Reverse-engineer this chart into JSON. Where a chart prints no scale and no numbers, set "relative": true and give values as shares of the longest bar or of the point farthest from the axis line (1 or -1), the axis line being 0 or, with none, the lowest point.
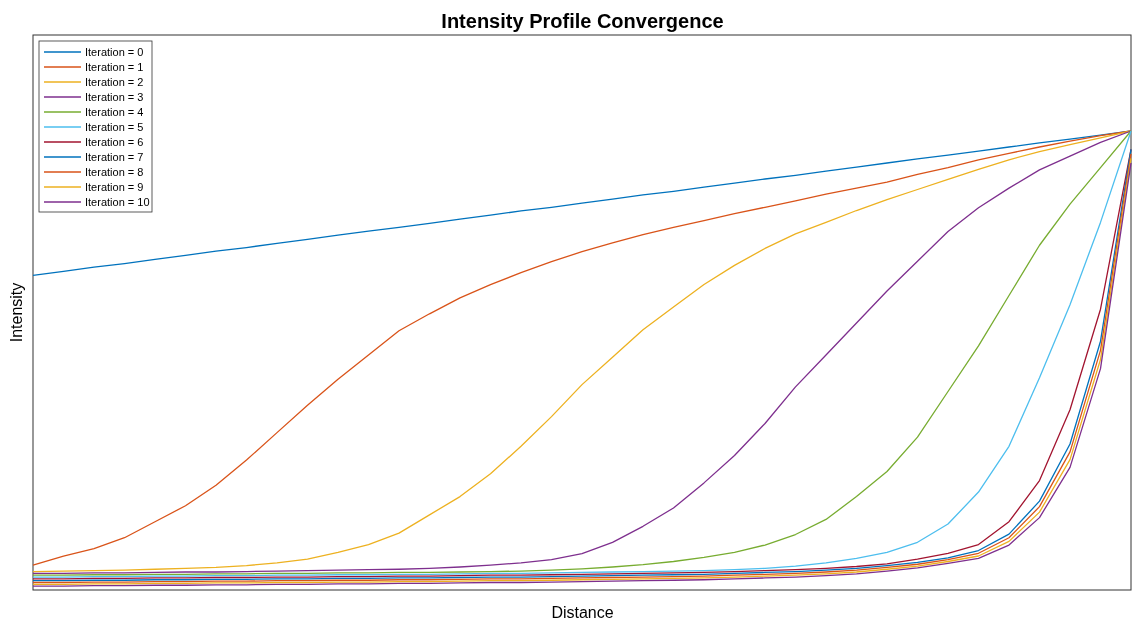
{
  "chart_data": {
    "type": "line",
    "title": "Intensity Profile Convergence",
    "xlabel": "Distance",
    "ylabel": "Intensity",
    "relative": true,
    "legend": "top left",
    "categories": [
      null,
      null,
      null,
      null,
      null,
      null,
      null,
      null,
      null,
      null,
      null,
      null,
      null,
      null,
      null,
      null,
      null,
      null,
      null,
      null,
      null,
      null,
      null,
      null,
      null,
      null,
      null,
      null,
      null,
      null,
      null,
      null,
      null,
      null,
      null,
      null,
      null
    ],
    "series": [
      {
        "name": "Iteration = 0",
        "color": "#0072bd",
        "values": [
          0.684,
          0.693,
          0.702,
          0.71,
          0.719,
          0.728,
          0.737,
          0.745,
          0.754,
          0.763,
          0.772,
          0.781,
          0.789,
          0.798,
          0.807,
          0.816,
          0.825,
          0.833,
          0.842,
          0.851,
          0.86,
          0.868,
          0.877,
          0.886,
          0.895,
          0.903,
          0.912,
          0.921,
          0.93,
          0.939,
          0.947,
          0.956,
          0.965,
          0.974,
          0.982,
          0.991,
          1
        ]
      },
      {
        "name": "Iteration = 1",
        "color": "#d95319",
        "values": [
          0.05,
          0.07,
          0.086,
          0.11,
          0.145,
          0.18,
          0.225,
          0.28,
          0.34,
          0.4,
          0.457,
          0.51,
          0.563,
          0.6,
          0.635,
          0.664,
          0.69,
          0.714,
          0.736,
          0.755,
          0.773,
          0.789,
          0.804,
          0.819,
          0.833,
          0.847,
          0.862,
          0.875,
          0.888,
          0.905,
          0.92,
          0.937,
          0.951,
          0.965,
          0.978,
          0.99,
          1
        ]
      },
      {
        "name": "Iteration = 2",
        "color": "#edb120",
        "values": [
          0.036,
          0.037,
          0.038,
          0.039,
          0.041,
          0.043,
          0.045,
          0.049,
          0.055,
          0.063,
          0.078,
          0.095,
          0.12,
          0.16,
          0.2,
          0.25,
          0.31,
          0.375,
          0.445,
          0.505,
          0.565,
          0.615,
          0.664,
          0.706,
          0.743,
          0.775,
          0.8,
          0.826,
          0.85,
          0.872,
          0.894,
          0.916,
          0.937,
          0.955,
          0.97,
          0.985,
          1
        ]
      },
      {
        "name": "Iteration = 3",
        "color": "#7e2f8e",
        "values": [
          0.032,
          0.032,
          0.033,
          0.033,
          0.034,
          0.035,
          0.035,
          0.036,
          0.037,
          0.038,
          0.039,
          0.04,
          0.041,
          0.043,
          0.046,
          0.05,
          0.055,
          0.062,
          0.075,
          0.1,
          0.135,
          0.175,
          0.23,
          0.29,
          0.36,
          0.44,
          0.51,
          0.58,
          0.65,
          0.715,
          0.78,
          0.832,
          0.875,
          0.915,
          0.945,
          0.975,
          1
        ]
      },
      {
        "name": "Iteration = 4",
        "color": "#77ac30",
        "values": [
          0.028,
          0.028,
          0.029,
          0.029,
          0.03,
          0.03,
          0.031,
          0.031,
          0.032,
          0.032,
          0.033,
          0.033,
          0.034,
          0.034,
          0.035,
          0.036,
          0.037,
          0.039,
          0.042,
          0.046,
          0.051,
          0.058,
          0.067,
          0.078,
          0.094,
          0.117,
          0.15,
          0.2,
          0.255,
          0.33,
          0.43,
          0.53,
          0.64,
          0.75,
          0.84,
          0.92,
          1
        ]
      },
      {
        "name": "Iteration = 5",
        "color": "#4dbeee",
        "values": [
          0.024,
          0.024,
          0.025,
          0.025,
          0.026,
          0.026,
          0.027,
          0.027,
          0.028,
          0.028,
          0.029,
          0.029,
          0.03,
          0.03,
          0.031,
          0.032,
          0.032,
          0.033,
          0.034,
          0.035,
          0.036,
          0.037,
          0.038,
          0.04,
          0.043,
          0.048,
          0.055,
          0.065,
          0.078,
          0.1,
          0.14,
          0.21,
          0.31,
          0.46,
          0.62,
          0.8,
          1
        ]
      },
      {
        "name": "Iteration = 6",
        "color": "#a2142f",
        "values": [
          0.02,
          0.02,
          0.021,
          0.021,
          0.022,
          0.022,
          0.023,
          0.023,
          0.024,
          0.024,
          0.025,
          0.025,
          0.026,
          0.026,
          0.027,
          0.028,
          0.028,
          0.029,
          0.03,
          0.031,
          0.032,
          0.033,
          0.034,
          0.036,
          0.038,
          0.04,
          0.043,
          0.047,
          0.053,
          0.063,
          0.076,
          0.095,
          0.145,
          0.235,
          0.39,
          0.61,
          0.96
        ]
      },
      {
        "name": "Iteration = 7",
        "color": "#0072bd",
        "values": [
          0.016,
          0.016,
          0.017,
          0.017,
          0.018,
          0.018,
          0.019,
          0.019,
          0.02,
          0.02,
          0.021,
          0.021,
          0.022,
          0.022,
          0.023,
          0.024,
          0.024,
          0.025,
          0.026,
          0.027,
          0.028,
          0.029,
          0.03,
          0.032,
          0.034,
          0.036,
          0.039,
          0.043,
          0.049,
          0.056,
          0.066,
          0.082,
          0.118,
          0.19,
          0.315,
          0.54,
          0.96
        ]
      },
      {
        "name": "Iteration = 8",
        "color": "#d95319",
        "values": [
          0.012,
          0.012,
          0.013,
          0.013,
          0.014,
          0.014,
          0.015,
          0.015,
          0.016,
          0.016,
          0.017,
          0.017,
          0.018,
          0.018,
          0.019,
          0.02,
          0.02,
          0.021,
          0.022,
          0.023,
          0.024,
          0.025,
          0.026,
          0.028,
          0.03,
          0.032,
          0.035,
          0.039,
          0.045,
          0.052,
          0.062,
          0.076,
          0.11,
          0.178,
          0.298,
          0.52,
          0.95
        ]
      },
      {
        "name": "Iteration = 9",
        "color": "#edb120",
        "values": [
          0.008,
          0.008,
          0.009,
          0.009,
          0.01,
          0.01,
          0.011,
          0.011,
          0.012,
          0.012,
          0.013,
          0.013,
          0.014,
          0.014,
          0.015,
          0.016,
          0.016,
          0.017,
          0.018,
          0.019,
          0.02,
          0.021,
          0.022,
          0.024,
          0.026,
          0.028,
          0.031,
          0.035,
          0.041,
          0.048,
          0.058,
          0.07,
          0.102,
          0.166,
          0.281,
          0.5,
          0.94
        ]
      },
      {
        "name": "Iteration = 10",
        "color": "#7e2f8e",
        "values": [
          0.004,
          0.004,
          0.005,
          0.005,
          0.006,
          0.006,
          0.007,
          0.007,
          0.008,
          0.008,
          0.009,
          0.009,
          0.01,
          0.01,
          0.011,
          0.012,
          0.012,
          0.013,
          0.014,
          0.015,
          0.016,
          0.017,
          0.018,
          0.02,
          0.022,
          0.024,
          0.027,
          0.031,
          0.037,
          0.044,
          0.054,
          0.065,
          0.094,
          0.154,
          0.264,
          0.48,
          0.93
        ]
      }
    ]
  }
}
